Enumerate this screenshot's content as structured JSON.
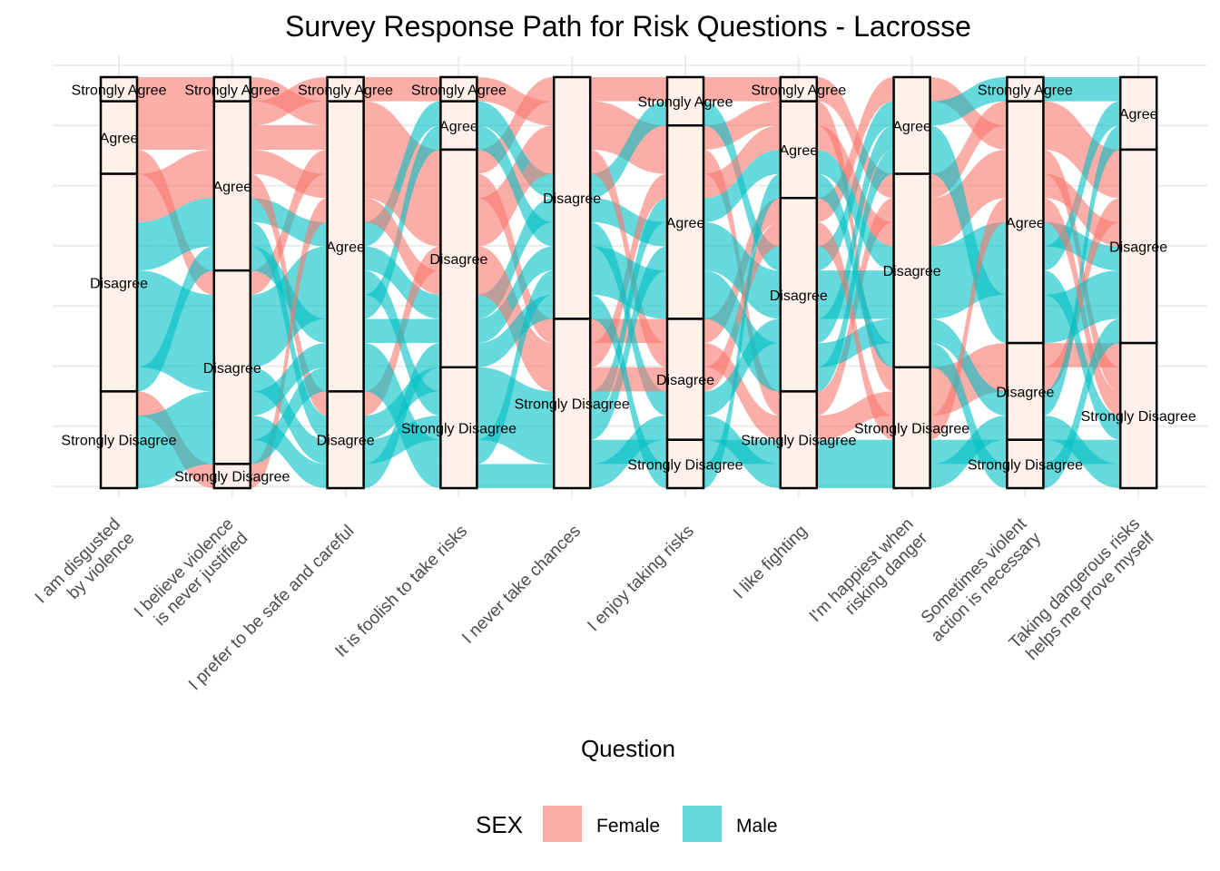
{
  "chart_data": {
    "type": "alluvial",
    "title": "Survey Response Path for Risk Questions - Lacrosse",
    "xlabel": "Question",
    "ylabel": "",
    "questions": [
      "I am disgusted\nby violence",
      "I believe violence\nis never justified",
      "I prefer to be safe and careful",
      "It is foolish to take risks",
      "I never take chances",
      "I enjoy taking risks",
      "I like fighting",
      "I'm happiest when\nrisking danger",
      "Sometimes violent\naction is necessary",
      "Taking dangerous risks\nhelps me prove myself"
    ],
    "response_levels": [
      "Strongly Agree",
      "Agree",
      "Disagree",
      "Strongly Disagree"
    ],
    "legend": {
      "title": "SEX",
      "position": "bottom"
    },
    "series": [
      {
        "name": "Female",
        "color": "#F8766D"
      },
      {
        "name": "Male",
        "color": "#00BFC4"
      }
    ],
    "respondents": [
      {
        "sex": "Female",
        "responses": [
          "Strongly Agree",
          "Strongly Agree",
          "Agree",
          "Disagree",
          "Disagree",
          "Strongly Agree",
          "Strongly Agree",
          "Disagree",
          "Agree",
          "Disagree"
        ]
      },
      {
        "sex": "Female",
        "responses": [
          "Agree",
          "Agree",
          "Strongly Agree",
          "Strongly Agree",
          "Disagree",
          "Agree",
          "Agree",
          "Strongly Disagree",
          "Disagree",
          "Strongly Disagree"
        ]
      },
      {
        "sex": "Female",
        "responses": [
          "Agree",
          "Agree",
          "Agree",
          "Disagree",
          "Strongly Disagree",
          "Disagree",
          "Disagree",
          "Agree",
          "Agree",
          "Disagree"
        ]
      },
      {
        "sex": "Female",
        "responses": [
          "Agree",
          "Disagree",
          "Agree",
          "Disagree",
          "Disagree",
          "Agree",
          "Strongly Disagree",
          "Disagree",
          "Agree",
          "Strongly Disagree"
        ]
      },
      {
        "sex": "Male",
        "responses": [
          "Disagree",
          "Agree",
          "Agree",
          "Agree",
          "Disagree",
          "Strongly Agree",
          "Disagree",
          "Agree",
          "Strongly Agree",
          "Agree"
        ]
      },
      {
        "sex": "Male",
        "responses": [
          "Disagree",
          "Agree",
          "Disagree",
          "Strongly Disagree",
          "Strongly Disagree",
          "Agree",
          "Agree",
          "Disagree",
          "Agree",
          "Disagree"
        ]
      },
      {
        "sex": "Male",
        "responses": [
          "Disagree",
          "Disagree",
          "Agree",
          "Disagree",
          "Disagree",
          "Agree",
          "Disagree",
          "Disagree",
          "Agree",
          "Agree"
        ]
      },
      {
        "sex": "Female",
        "responses": [
          "Disagree",
          "Agree",
          "Agree",
          "Disagree",
          "Disagree",
          "Disagree",
          "Strongly Disagree",
          "Strongly Disagree",
          "Disagree",
          "Disagree"
        ]
      },
      {
        "sex": "Male",
        "responses": [
          "Disagree",
          "Disagree",
          "Agree",
          "Strongly Disagree",
          "Strongly Disagree",
          "Agree",
          "Disagree",
          "Disagree",
          "Agree",
          "Strongly Disagree"
        ]
      },
      {
        "sex": "Female",
        "responses": [
          "Disagree",
          "Agree",
          "Disagree",
          "Disagree",
          "Strongly Disagree",
          "Agree",
          "Agree",
          "Disagree",
          "Agree",
          "Disagree"
        ]
      },
      {
        "sex": "Male",
        "responses": [
          "Disagree",
          "Disagree",
          "Agree",
          "Agree",
          "Disagree",
          "Disagree",
          "Disagree",
          "Agree",
          "Agree",
          "Disagree"
        ]
      },
      {
        "sex": "Male",
        "responses": [
          "Disagree",
          "Disagree",
          "Disagree",
          "Strongly Disagree",
          "Strongly Disagree",
          "Strongly Disagree",
          "Strongly Disagree",
          "Strongly Disagree",
          "Strongly Disagree",
          "Strongly Disagree"
        ]
      },
      {
        "sex": "Male",
        "responses": [
          "Disagree",
          "Agree",
          "Agree",
          "Disagree",
          "Disagree",
          "Agree",
          "Disagree",
          "Disagree",
          "Disagree",
          "Agree"
        ]
      },
      {
        "sex": "Female",
        "responses": [
          "Strongly Disagree",
          "Strongly Disagree",
          "Agree",
          "Disagree",
          "Strongly Disagree",
          "Disagree",
          "Disagree",
          "Strongly Disagree",
          "Agree",
          "Strongly Disagree"
        ]
      },
      {
        "sex": "Male",
        "responses": [
          "Strongly Disagree",
          "Disagree",
          "Agree",
          "Strongly Disagree",
          "Disagree",
          "Agree",
          "Disagree",
          "Agree",
          "Agree",
          "Disagree"
        ]
      },
      {
        "sex": "Male",
        "responses": [
          "Strongly Disagree",
          "Disagree",
          "Disagree",
          "Disagree",
          "Disagree",
          "Strongly Disagree",
          "Agree",
          "Disagree",
          "Strongly Disagree",
          "Disagree"
        ]
      },
      {
        "sex": "Male",
        "responses": [
          "Strongly Disagree",
          "Disagree",
          "Agree",
          "Strongly Disagree",
          "Strongly Disagree",
          "Disagree",
          "Strongly Disagree",
          "Strongly Disagree",
          "Disagree",
          "Strongly Disagree"
        ]
      }
    ]
  }
}
